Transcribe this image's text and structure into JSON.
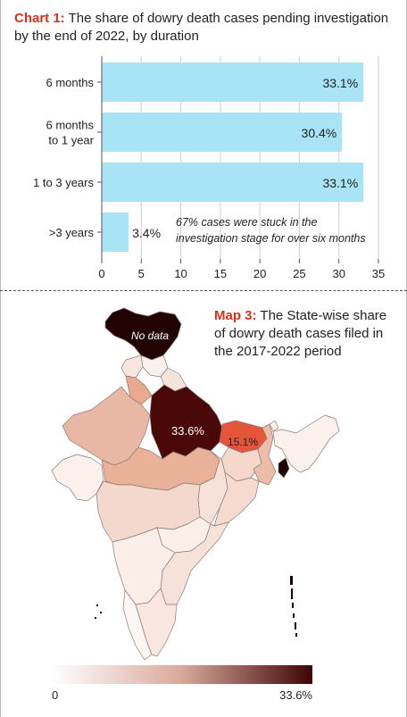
{
  "chart1": {
    "title_lead": "Chart 1:",
    "title_rest": " The share of dowry death cases pending investigation by the end of 2022, by duration"
  },
  "chart_data": [
    {
      "type": "bar",
      "orientation": "horizontal",
      "title": "Chart 1: The share of dowry death cases pending investigation by the end of 2022, by duration",
      "categories": [
        [
          "6 months"
        ],
        [
          "6 months",
          "to 1 year"
        ],
        [
          "1 to 3 years"
        ],
        [
          ">3 years"
        ]
      ],
      "values": [
        33.1,
        30.4,
        33.1,
        3.4
      ],
      "value_labels": [
        "33.1%",
        "30.4%",
        "33.1%",
        "3.4%"
      ],
      "xlim": [
        0,
        35
      ],
      "xticks": [
        0,
        5,
        10,
        15,
        20,
        25,
        30,
        35
      ],
      "bar_color": "#a8e4f5",
      "grid": true,
      "annotation": [
        "67% cases were stuck in the",
        "investigation stage for over six months"
      ]
    },
    {
      "type": "map",
      "title": "Map 3: The State-wise share of dowry death cases filed in the 2017-2022 period",
      "highlights": [
        {
          "label": "33.6%",
          "value": 33.6
        },
        {
          "label": "15.1%",
          "value": 15.1
        },
        {
          "label": "No data",
          "value": null
        }
      ],
      "legend": {
        "min_label": "0",
        "max_label": "33.6%",
        "min": 0,
        "max": 33.6,
        "color_low": "#ffffff",
        "color_high": "#3d0505"
      }
    }
  ],
  "map3": {
    "title_lead": "Map 3:",
    "title_rest": " The State-wise share of dowry death cases filed in the 2017-2022 period"
  }
}
